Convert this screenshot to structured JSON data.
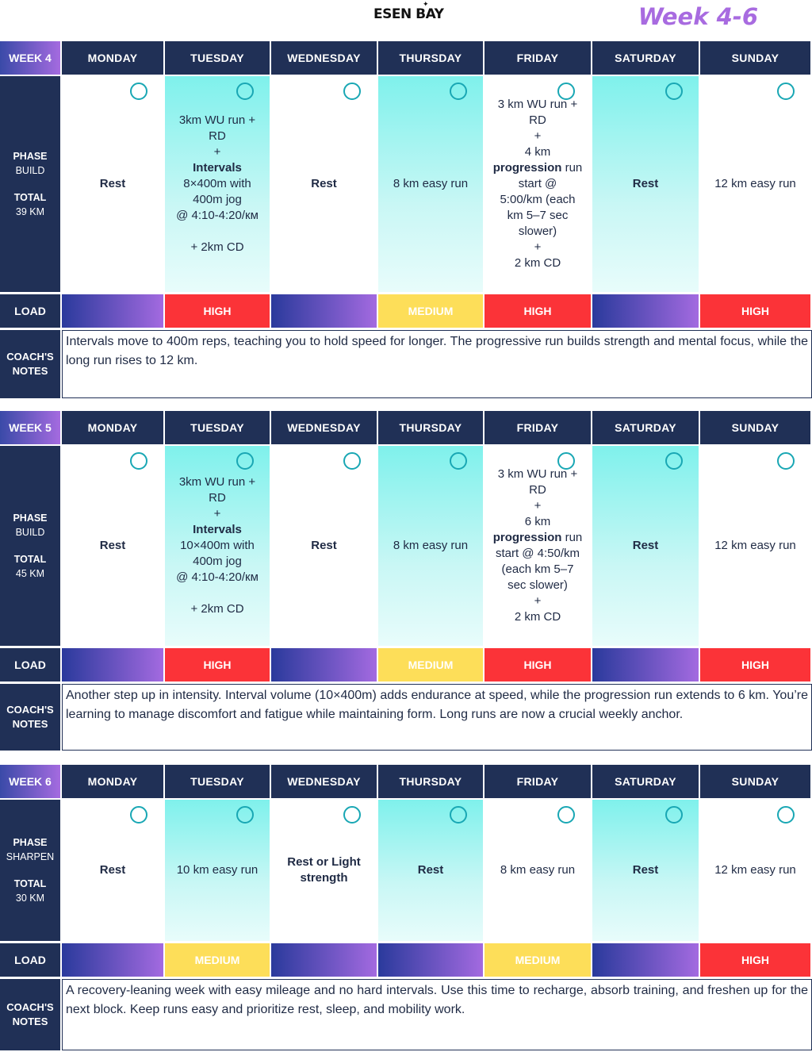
{
  "brand": "ESEN BAY",
  "title": "Week 4-6",
  "days": [
    "MONDAY",
    "TUESDAY",
    "WEDNESDAY",
    "THURSDAY",
    "FRIDAY",
    "SATURDAY",
    "SUNDAY"
  ],
  "labels": {
    "phase": "PHASE",
    "total": "TOTAL",
    "load": "LOAD",
    "coach_line1": "COACH'S",
    "coach_line2": "NOTES"
  },
  "weeks": [
    {
      "label": "WEEK 4",
      "phase": "BUILD",
      "total": "39 KM",
      "workouts": [
        [
          "<b>Rest</b>"
        ],
        [
          "3km WU run +",
          "RD",
          "+",
          "<b>Intervals</b>",
          "8×400m with",
          "400m jog",
          "@ 4:10-4:20/км",
          "",
          "+ 2km CD"
        ],
        [
          "<b>Rest</b>"
        ],
        [
          "8 km easy run"
        ],
        [
          "3 km WU run +",
          "RD",
          "+",
          "4 km",
          "<b>progression</b> run",
          "start @",
          "5:00/km (each",
          "km 5–7 sec",
          "slower)",
          "+",
          "2 km CD"
        ],
        [
          "<b>Rest</b>"
        ],
        [
          "12 km easy run"
        ]
      ],
      "load": [
        "",
        "HIGH",
        "",
        "MEDIUM",
        "HIGH",
        "",
        "HIGH"
      ],
      "notes": "Intervals move to 400m reps, teaching you to hold speed for longer. The progressive run builds strength and mental focus, while the long run rises to 12 km."
    },
    {
      "label": "WEEK 5",
      "phase": "BUILD",
      "total": "45 KM",
      "workouts": [
        [
          "<b>Rest</b>"
        ],
        [
          "3km WU run +",
          "RD",
          "+",
          "<b>Intervals</b>",
          "10×400m with",
          "400m jog",
          "@ 4:10-4:20/км",
          "",
          "+ 2km CD"
        ],
        [
          "<b>Rest</b>"
        ],
        [
          "8 km easy run"
        ],
        [
          "3 km WU run +",
          "RD",
          "+",
          "6 km",
          "<b>progression</b> run",
          "start @ 4:50/km",
          "(each km 5–7",
          "sec slower)",
          "+",
          "2 km CD"
        ],
        [
          "<b>Rest</b>"
        ],
        [
          "12 km easy run"
        ]
      ],
      "load": [
        "",
        "HIGH",
        "",
        "MEDIUM",
        "HIGH",
        "",
        "HIGH"
      ],
      "notes": "Another step up in intensity. Interval volume (10×400m) adds endurance at speed, while the progression run extends to 6 km. You’re learning to manage discomfort and fatigue while maintaining form. Long runs are now a crucial weekly anchor."
    },
    {
      "label": "WEEK 6",
      "phase": "SHARPEN",
      "total": "30 KM",
      "workouts": [
        [
          "<b>Rest</b>"
        ],
        [
          "10 km easy run"
        ],
        [
          "<b>Rest or Light</b>",
          "<b>strength</b>"
        ],
        [
          "<b>Rest</b>"
        ],
        [
          "8 km easy run"
        ],
        [
          "<b>Rest</b>"
        ],
        [
          "12 km easy run"
        ]
      ],
      "load": [
        "",
        "MEDIUM",
        "",
        "",
        "MEDIUM",
        "",
        "HIGH"
      ],
      "notes": "A recovery-leaning week with easy mileage and no hard intervals. Use this time to recharge, absorb training, and freshen up for the next block. Keep runs easy and prioritize rest, sleep, and mobility work."
    }
  ],
  "colors": {
    "navy": "#203056",
    "teal": "#7ff1ec",
    "high": "#fb3338",
    "medium": "#fdde59",
    "accent": "#a86be0",
    "checkbox": "#19a7b4"
  }
}
